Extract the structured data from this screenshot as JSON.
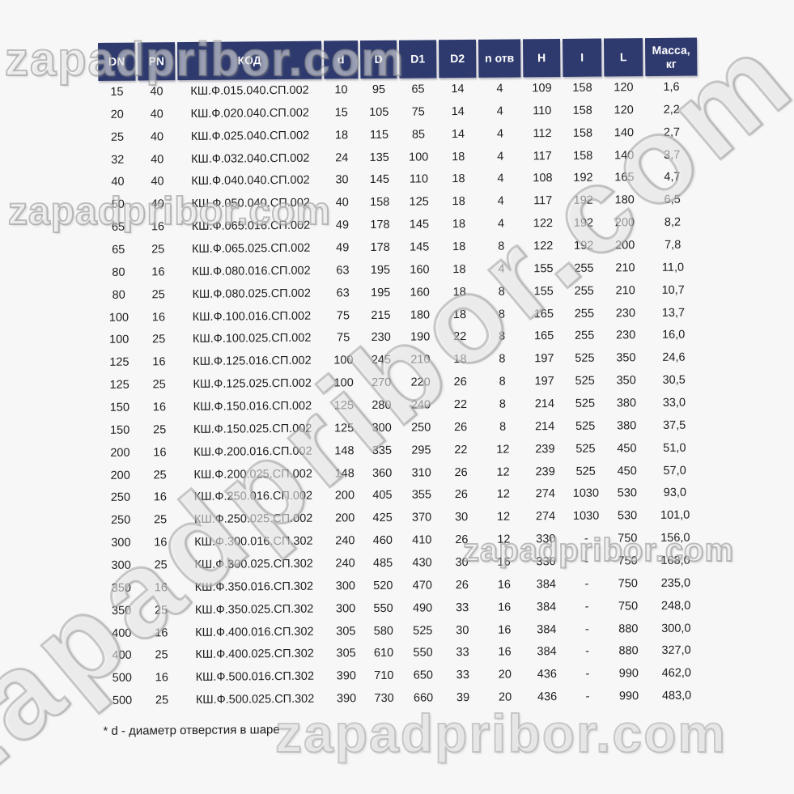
{
  "watermarks": [
    {
      "id": "top",
      "text": "zapadpribor.com"
    },
    {
      "id": "upper",
      "text": "zapadpribor.com"
    },
    {
      "id": "diag",
      "text": "zapadpribor.com"
    },
    {
      "id": "mid",
      "text": "zapadpribor.com"
    },
    {
      "id": "bottom",
      "text": "zapadpribor.com"
    }
  ],
  "colors": {
    "header_bg": "#2e3a6e",
    "header_text": "#ffffff",
    "page_bg": "#f7f7f8",
    "body_text": "#1d1d1f"
  },
  "table": {
    "headers": [
      "DN",
      "PN",
      "КОД",
      "d",
      "D",
      "D1",
      "D2",
      "n отв",
      "H",
      "I",
      "L",
      "Масса, кг"
    ],
    "rows": [
      [
        "15",
        "40",
        "КШ.Ф.015.040.СП.002",
        "10",
        "95",
        "65",
        "14",
        "4",
        "109",
        "158",
        "120",
        "1,6"
      ],
      [
        "20",
        "40",
        "КШ.Ф.020.040.СП.002",
        "15",
        "105",
        "75",
        "14",
        "4",
        "110",
        "158",
        "120",
        "2,2"
      ],
      [
        "25",
        "40",
        "КШ.Ф.025.040.СП.002",
        "18",
        "115",
        "85",
        "14",
        "4",
        "112",
        "158",
        "140",
        "2,7"
      ],
      [
        "32",
        "40",
        "КШ.Ф.032.040.СП.002",
        "24",
        "135",
        "100",
        "18",
        "4",
        "117",
        "158",
        "140",
        "3,7"
      ],
      [
        "40",
        "40",
        "КШ.Ф.040.040.СП.002",
        "30",
        "145",
        "110",
        "18",
        "4",
        "108",
        "192",
        "165",
        "4,7"
      ],
      [
        "50",
        "40",
        "КШ.Ф.050.040.СП.002",
        "40",
        "158",
        "125",
        "18",
        "4",
        "117",
        "192",
        "180",
        "6,5"
      ],
      [
        "65",
        "16",
        "КШ.Ф.065.016.СП.002",
        "49",
        "178",
        "145",
        "18",
        "4",
        "122",
        "192",
        "200",
        "8,2"
      ],
      [
        "65",
        "25",
        "КШ.Ф.065.025.СП.002",
        "49",
        "178",
        "145",
        "18",
        "8",
        "122",
        "192",
        "200",
        "7,8"
      ],
      [
        "80",
        "16",
        "КШ.Ф.080.016.СП.002",
        "63",
        "195",
        "160",
        "18",
        "4",
        "155",
        "255",
        "210",
        "11,0"
      ],
      [
        "80",
        "25",
        "КШ.Ф.080.025.СП.002",
        "63",
        "195",
        "160",
        "18",
        "8",
        "155",
        "255",
        "210",
        "10,7"
      ],
      [
        "100",
        "16",
        "КШ.Ф.100.016.СП.002",
        "75",
        "215",
        "180",
        "18",
        "8",
        "165",
        "255",
        "230",
        "13,7"
      ],
      [
        "100",
        "25",
        "КШ.Ф.100.025.СП.002",
        "75",
        "230",
        "190",
        "22",
        "8",
        "165",
        "255",
        "230",
        "16,0"
      ],
      [
        "125",
        "16",
        "КШ.Ф.125.016.СП.002",
        "100",
        "245",
        "210",
        "18",
        "8",
        "197",
        "525",
        "350",
        "24,6"
      ],
      [
        "125",
        "25",
        "КШ.Ф.125.025.СП.002",
        "100",
        "270",
        "220",
        "26",
        "8",
        "197",
        "525",
        "350",
        "30,5"
      ],
      [
        "150",
        "16",
        "КШ.Ф.150.016.СП.002",
        "125",
        "280",
        "240",
        "22",
        "8",
        "214",
        "525",
        "380",
        "33,0"
      ],
      [
        "150",
        "25",
        "КШ.Ф.150.025.СП.002",
        "125",
        "300",
        "250",
        "26",
        "8",
        "214",
        "525",
        "380",
        "37,5"
      ],
      [
        "200",
        "16",
        "КШ.Ф.200.016.СП.002",
        "148",
        "335",
        "295",
        "22",
        "12",
        "239",
        "525",
        "450",
        "51,0"
      ],
      [
        "200",
        "25",
        "КШ.Ф.200.025.СП.002",
        "148",
        "360",
        "310",
        "26",
        "12",
        "239",
        "525",
        "450",
        "57,0"
      ],
      [
        "250",
        "16",
        "КШ.Ф.250.016.СП.002",
        "200",
        "405",
        "355",
        "26",
        "12",
        "274",
        "1030",
        "530",
        "93,0"
      ],
      [
        "250",
        "25",
        "КШ.Ф.250.025.СП.002",
        "200",
        "425",
        "370",
        "30",
        "12",
        "274",
        "1030",
        "530",
        "101,0"
      ],
      [
        "300",
        "16",
        "КШ.Ф.300.016.СП.302",
        "240",
        "460",
        "410",
        "26",
        "12",
        "330",
        "-",
        "750",
        "156,0"
      ],
      [
        "300",
        "25",
        "КШ.Ф.300.025.СП.302",
        "240",
        "485",
        "430",
        "30",
        "16",
        "330",
        "-",
        "750",
        "168,0"
      ],
      [
        "350",
        "16",
        "КШ.Ф.350.016.СП.302",
        "300",
        "520",
        "470",
        "26",
        "16",
        "384",
        "-",
        "750",
        "235,0"
      ],
      [
        "350",
        "25",
        "КШ.Ф.350.025.СП.302",
        "300",
        "550",
        "490",
        "33",
        "16",
        "384",
        "-",
        "750",
        "248,0"
      ],
      [
        "400",
        "16",
        "КШ.Ф.400.016.СП.302",
        "305",
        "580",
        "525",
        "30",
        "16",
        "384",
        "-",
        "880",
        "300,0"
      ],
      [
        "400",
        "25",
        "КШ.Ф.400.025.СП.302",
        "305",
        "610",
        "550",
        "33",
        "16",
        "384",
        "-",
        "880",
        "327,0"
      ],
      [
        "500",
        "16",
        "КШ.Ф.500.016.СП.302",
        "390",
        "710",
        "650",
        "33",
        "20",
        "436",
        "-",
        "990",
        "462,0"
      ],
      [
        "500",
        "25",
        "КШ.Ф.500.025.СП.302",
        "390",
        "730",
        "660",
        "39",
        "20",
        "436",
        "-",
        "990",
        "483,0"
      ]
    ]
  },
  "footnote": "* d - диаметр отверстия в шаре"
}
